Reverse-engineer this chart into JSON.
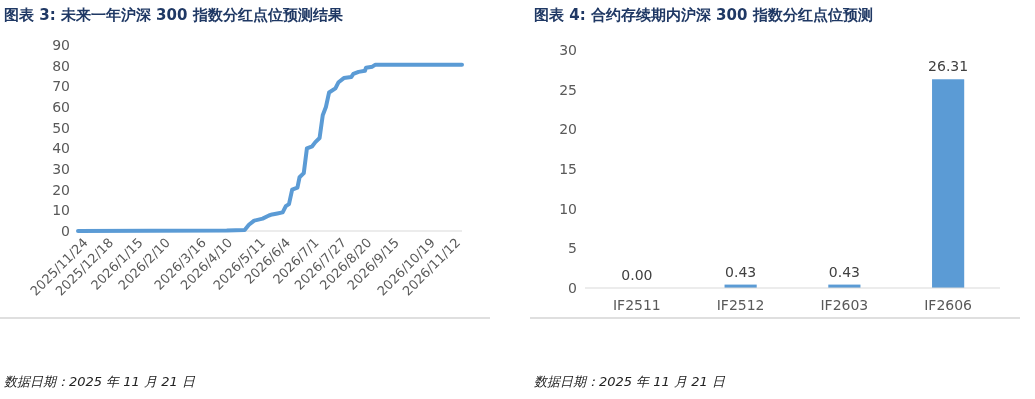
{
  "chart_data": [
    {
      "type": "line",
      "title": "图表 3: 未来一年沪深 300 指数分红点位预测结果",
      "x": [
        "2025-11-21",
        "2026-04-11",
        "2026-04-28",
        "2026-05-02",
        "2026-05-07",
        "2026-05-15",
        "2026-05-21",
        "2026-05-24",
        "2026-05-29",
        "2026-06-03",
        "2026-06-06",
        "2026-06-09",
        "2026-06-12",
        "2026-06-17",
        "2026-06-19",
        "2026-06-23",
        "2026-06-26",
        "2026-07-01",
        "2026-07-04",
        "2026-07-08",
        "2026-07-11",
        "2026-07-14",
        "2026-07-17",
        "2026-07-23",
        "2026-07-26",
        "2026-07-31",
        "2026-08-07",
        "2026-08-09",
        "2026-08-14",
        "2026-08-20",
        "2026-08-21",
        "2026-08-27",
        "2026-08-30",
        "2026-11-20"
      ],
      "series": [
        {
          "color": "#5b9bd5",
          "values": [
            0,
            0.2,
            0.5,
            3,
            5,
            6,
            7.5,
            8,
            8.5,
            9,
            12,
            13,
            20,
            21,
            26,
            28,
            40,
            41,
            43,
            45,
            56,
            60,
            67,
            69,
            72,
            74,
            74.5,
            76,
            77,
            77.5,
            79,
            79.5,
            80.5,
            80.5
          ]
        }
      ],
      "xlim": [
        "2025-11-21",
        "2026-11-20"
      ],
      "xticks": [
        {
          "value": "2025-11-24",
          "label": "2025/11/24"
        },
        {
          "value": "2025-12-18",
          "label": "2025/12/18"
        },
        {
          "value": "2026-01-15",
          "label": "2026/1/15"
        },
        {
          "value": "2026-02-10",
          "label": "2026/2/10"
        },
        {
          "value": "2026-03-16",
          "label": "2026/3/16"
        },
        {
          "value": "2026-04-10",
          "label": "2026/4/10"
        },
        {
          "value": "2026-05-11",
          "label": "2026/5/11"
        },
        {
          "value": "2026-06-04",
          "label": "2026/6/4"
        },
        {
          "value": "2026-07-01",
          "label": "2026/7/1"
        },
        {
          "value": "2026-07-27",
          "label": "2026/7/27"
        },
        {
          "value": "2026-08-20",
          "label": "2026/8/20"
        },
        {
          "value": "2026-09-15",
          "label": "2026/9/15"
        },
        {
          "value": "2026-10-19",
          "label": "2026/10/19"
        },
        {
          "value": "2026-11-12",
          "label": "2026/11/12"
        }
      ],
      "ylim": [
        0,
        90
      ],
      "yticks": [
        0,
        10,
        20,
        30,
        40,
        50,
        60,
        70,
        80,
        90
      ],
      "grid": false,
      "annotations": [
        "数据日期：2025 年 11 月 21 日"
      ]
    },
    {
      "type": "bar",
      "title": "图表 4: 合约存续期内沪深 300 指数分红点位预测",
      "categories": [
        "IF2511",
        "IF2512",
        "IF2603",
        "IF2606"
      ],
      "values": [
        0,
        0.43,
        0.43,
        26.31
      ],
      "color": "#5b9bd5",
      "ylim": [
        0,
        30
      ],
      "yticks": [
        0,
        5,
        10,
        15,
        20,
        25,
        30
      ],
      "grid": false,
      "data_labels": true,
      "value_labels": [
        "0.00",
        "0.43",
        "0.43",
        "26.31"
      ],
      "annotations": [
        "数据日期：2025 年 11 月 21 日"
      ]
    }
  ]
}
